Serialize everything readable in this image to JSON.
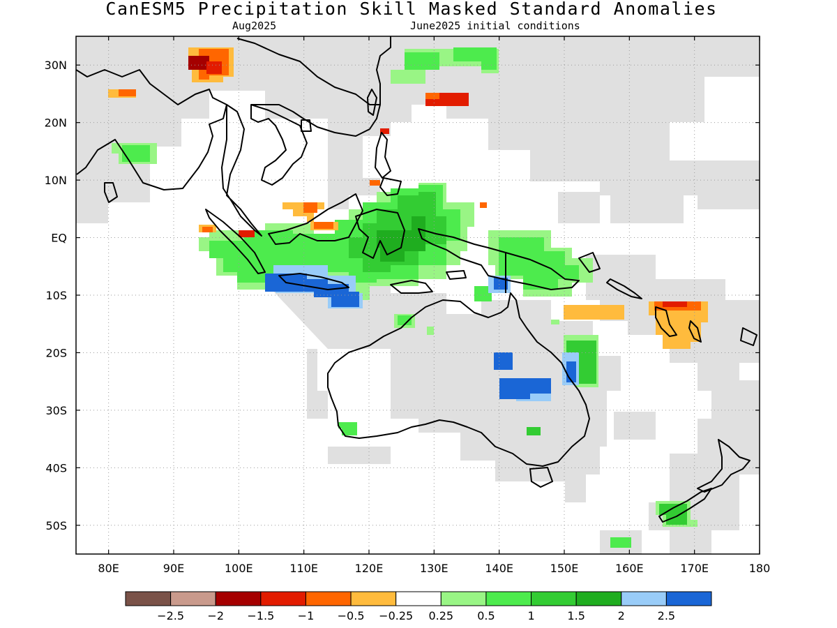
{
  "title": "CanESM5 Precipitation Skill Masked Standard Anomalies",
  "subtitle_left": "Aug2025",
  "subtitle_right": "June2025 initial conditions",
  "map": {
    "lon_range": [
      75,
      180
    ],
    "lat_range": [
      -55,
      35
    ],
    "lon_ticks": [
      {
        "lon": 80,
        "label": "80E"
      },
      {
        "lon": 90,
        "label": "90E"
      },
      {
        "lon": 100,
        "label": "100E"
      },
      {
        "lon": 110,
        "label": "110E"
      },
      {
        "lon": 120,
        "label": "120E"
      },
      {
        "lon": 130,
        "label": "130E"
      },
      {
        "lon": 140,
        "label": "140E"
      },
      {
        "lon": 150,
        "label": "150E"
      },
      {
        "lon": 160,
        "label": "160E"
      },
      {
        "lon": 170,
        "label": "170E"
      },
      {
        "lon": 180,
        "label": "180"
      }
    ],
    "lat_ticks": [
      {
        "lat": 30,
        "label": "30N"
      },
      {
        "lat": 20,
        "label": "20N"
      },
      {
        "lat": 10,
        "label": "10N"
      },
      {
        "lat": 0,
        "label": "EQ"
      },
      {
        "lat": -10,
        "label": "10S"
      },
      {
        "lat": -20,
        "label": "20S"
      },
      {
        "lat": -30,
        "label": "30S"
      },
      {
        "lat": -40,
        "label": "40S"
      },
      {
        "lat": -50,
        "label": "50S"
      }
    ],
    "grid": true,
    "mask_color": "#e0e0e0"
  },
  "colorbar": {
    "colors": [
      "#7a5248",
      "#c99a8c",
      "#a50000",
      "#e21c00",
      "#ff6600",
      "#ffbb3d",
      "#ffffff",
      "#99f585",
      "#4deb4d",
      "#33cc33",
      "#1fad1f",
      "#99ccf8",
      "#1a66d6"
    ],
    "labels": [
      "-2.5",
      "-2",
      "-1.5",
      "-1",
      "-0.5",
      "-0.25",
      "0.25",
      "0.5",
      "1",
      "1.5",
      "2",
      "2.5"
    ]
  }
}
